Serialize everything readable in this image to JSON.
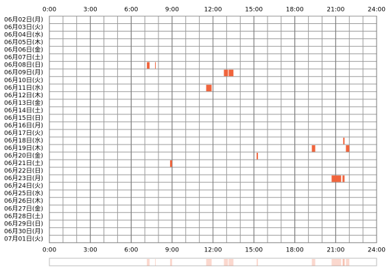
{
  "chart_data": {
    "type": "timeline",
    "xlim": [
      0,
      24
    ],
    "xticks": [
      {
        "value": 0,
        "label": "0:00"
      },
      {
        "value": 3,
        "label": "3:00"
      },
      {
        "value": 6,
        "label": "6:00"
      },
      {
        "value": 9,
        "label": "9:00"
      },
      {
        "value": 12,
        "label": "12:00"
      },
      {
        "value": 15,
        "label": "15:00"
      },
      {
        "value": 18,
        "label": "18:00"
      },
      {
        "value": 21,
        "label": "21:00"
      },
      {
        "value": 24,
        "label": "24:00"
      }
    ],
    "color": "#f0643c",
    "rows": [
      {
        "label": "06月02日(月)",
        "spans": []
      },
      {
        "label": "06月03日(火)",
        "spans": []
      },
      {
        "label": "06月04日(水)",
        "spans": []
      },
      {
        "label": "06月05日(木)",
        "spans": []
      },
      {
        "label": "06月06日(金)",
        "spans": []
      },
      {
        "label": "06月07日(土)",
        "spans": []
      },
      {
        "label": "06月08日(日)",
        "spans": [
          [
            7.15,
            7.35
          ],
          [
            7.75,
            7.8
          ]
        ]
      },
      {
        "label": "06月09日(月)",
        "spans": [
          [
            12.8,
            13.1
          ],
          [
            13.15,
            13.5
          ]
        ]
      },
      {
        "label": "06月10日(火)",
        "spans": []
      },
      {
        "label": "06月11日(水)",
        "spans": [
          [
            11.5,
            11.9
          ]
        ]
      },
      {
        "label": "06月12日(木)",
        "spans": []
      },
      {
        "label": "06月13日(金)",
        "spans": []
      },
      {
        "label": "06月14日(土)",
        "spans": []
      },
      {
        "label": "06月15日(日)",
        "spans": []
      },
      {
        "label": "06月16日(月)",
        "spans": []
      },
      {
        "label": "06月17日(火)",
        "spans": []
      },
      {
        "label": "06月18日(水)",
        "spans": [
          [
            21.55,
            21.65
          ]
        ]
      },
      {
        "label": "06月19日(木)",
        "spans": [
          [
            19.25,
            19.5
          ],
          [
            21.75,
            22.0
          ]
        ]
      },
      {
        "label": "06月20日(金)",
        "spans": [
          [
            15.2,
            15.3
          ]
        ]
      },
      {
        "label": "06月21日(土)",
        "spans": [
          [
            8.85,
            9.0
          ]
        ]
      },
      {
        "label": "06月22日(日)",
        "spans": []
      },
      {
        "label": "06月23日(月)",
        "spans": [
          [
            20.7,
            21.4
          ],
          [
            21.5,
            21.65
          ]
        ]
      },
      {
        "label": "06月24日(火)",
        "spans": []
      },
      {
        "label": "06月25日(水)",
        "spans": []
      },
      {
        "label": "06月26日(木)",
        "spans": []
      },
      {
        "label": "06月27日(金)",
        "spans": []
      },
      {
        "label": "06月28日(土)",
        "spans": []
      },
      {
        "label": "06月29日(日)",
        "spans": []
      },
      {
        "label": "06月30日(月)",
        "spans": []
      },
      {
        "label": "07月01日(火)",
        "spans": []
      }
    ]
  }
}
